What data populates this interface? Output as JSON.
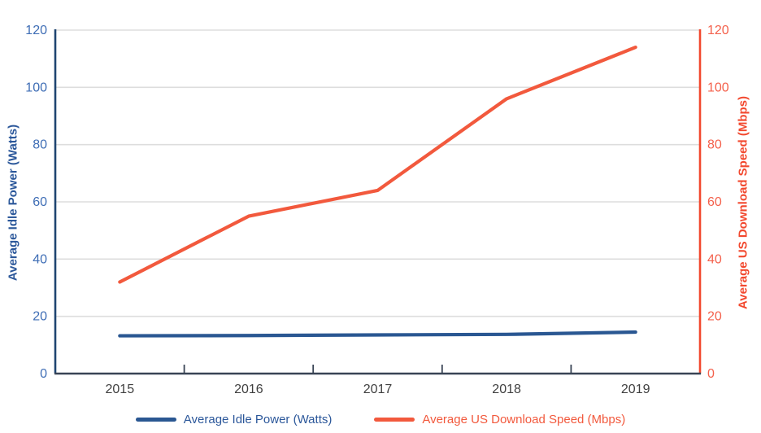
{
  "chart_data": {
    "type": "line",
    "title": "",
    "categories": [
      "2015",
      "2016",
      "2017",
      "2018",
      "2019"
    ],
    "series": [
      {
        "name": "Average Idle Power (Watts)",
        "axis": "left",
        "color": "#2A5792",
        "values": [
          13.2,
          13.3,
          13.5,
          13.7,
          14.5
        ]
      },
      {
        "name": "Average US Download Speed (Mbps)",
        "axis": "right",
        "color": "#F2593D",
        "values": [
          32,
          55,
          64,
          96,
          114
        ]
      }
    ],
    "left_axis": {
      "label": "Average Idle Power (Watts)",
      "min": 0,
      "max": 120,
      "step": 20,
      "ticks": [
        0,
        20,
        40,
        60,
        80,
        100,
        120
      ],
      "title_color": "#2B579A",
      "tick_color": "#3E6DB5",
      "line_color": "#1F4571"
    },
    "right_axis": {
      "label": "Average US Download Speed (Mbps)",
      "min": 0,
      "max": 120,
      "step": 20,
      "ticks": [
        0,
        20,
        40,
        60,
        80,
        100,
        120
      ],
      "title_color": "#F2482E",
      "tick_color": "#F4614C",
      "line_color": "#F2482E"
    },
    "x_axis": {
      "line_color": "#394455",
      "label_color": "#3F3F3F"
    },
    "grid": {
      "show": true,
      "color": "#DDDDDD"
    },
    "legend_position": "bottom"
  }
}
